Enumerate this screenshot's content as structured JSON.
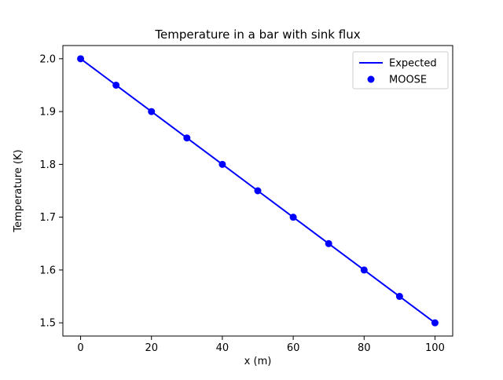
{
  "chart_data": {
    "type": "line",
    "title": "Temperature in a bar with sink flux",
    "xlabel": "x (m)",
    "ylabel": "Temperature (K)",
    "xlim": [
      -5,
      105
    ],
    "ylim": [
      1.475,
      2.025
    ],
    "x_ticks": [
      0,
      20,
      40,
      60,
      80,
      100
    ],
    "x_tick_labels": [
      "0",
      "20",
      "40",
      "60",
      "80",
      "100"
    ],
    "y_ticks": [
      1.5,
      1.6,
      1.7,
      1.8,
      1.9,
      2.0
    ],
    "y_tick_labels": [
      "1.5",
      "1.6",
      "1.7",
      "1.8",
      "1.9",
      "2.0"
    ],
    "grid": false,
    "legend_position": "upper right",
    "series": [
      {
        "name": "Expected",
        "type": "line",
        "color": "#0000ff",
        "x": [
          0,
          10,
          20,
          30,
          40,
          50,
          60,
          70,
          80,
          90,
          100
        ],
        "y": [
          2.0,
          1.95,
          1.9,
          1.85,
          1.8,
          1.75,
          1.7,
          1.65,
          1.6,
          1.55,
          1.5
        ]
      },
      {
        "name": "MOOSE",
        "type": "scatter",
        "color": "#0000ff",
        "x": [
          0,
          10,
          20,
          30,
          40,
          50,
          60,
          70,
          80,
          90,
          100
        ],
        "y": [
          2.0,
          1.95,
          1.9,
          1.85,
          1.8,
          1.75,
          1.7,
          1.65,
          1.6,
          1.55,
          1.5
        ]
      }
    ]
  }
}
